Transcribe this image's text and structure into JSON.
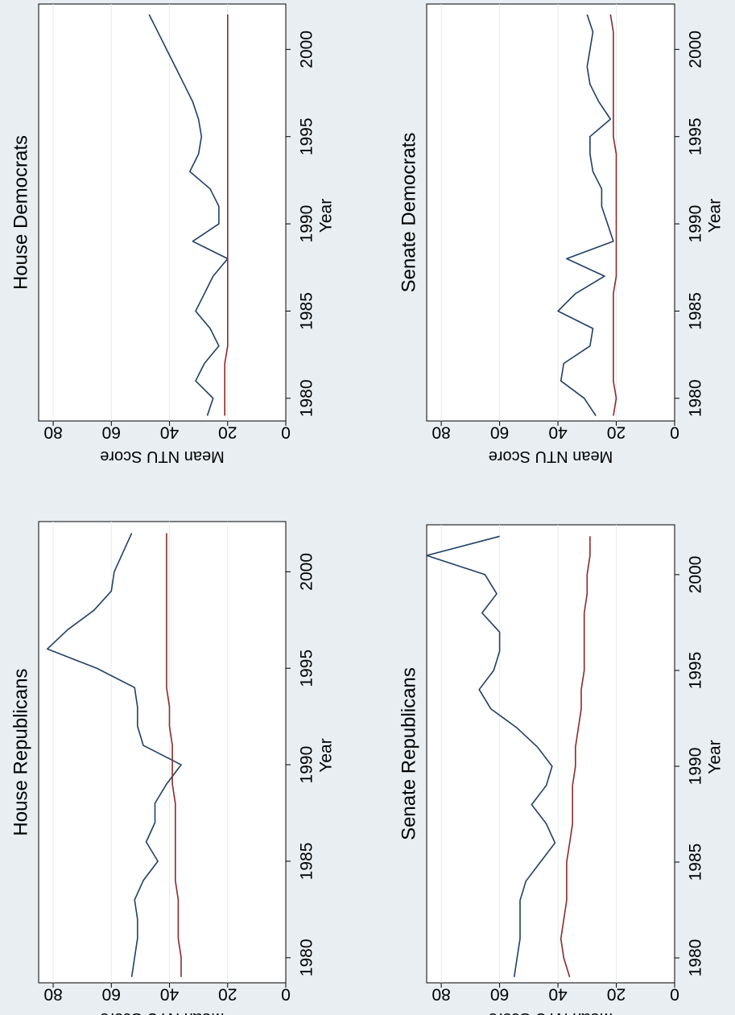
{
  "chart_data": [
    {
      "type": "line",
      "title": "House Republicans",
      "xlabel": "Year",
      "ylabel": "Mean NTU Score",
      "xlim": [
        1978.7,
        2002.6
      ],
      "ylim": [
        0,
        85
      ],
      "xticks": [
        1980,
        1985,
        1990,
        1995,
        2000
      ],
      "yticks": [
        0,
        20,
        40,
        60,
        80
      ],
      "grid": true,
      "series": [
        {
          "color": "#1f3f66",
          "x": [
            1979,
            1980,
            1981,
            1982,
            1983,
            1984,
            1985,
            1986,
            1987,
            1988,
            1989,
            1990,
            1991,
            1992,
            1993,
            1994,
            1995,
            1996,
            1997,
            1998,
            1999,
            2000,
            2001,
            2002
          ],
          "y": [
            53,
            52,
            51,
            51,
            52,
            49,
            44,
            48,
            45,
            45,
            41,
            36,
            49,
            51,
            51,
            52,
            65,
            82,
            75,
            66,
            60,
            59,
            56,
            53
          ]
        },
        {
          "color": "#8b2a2a",
          "x": [
            1979,
            1980,
            1981,
            1982,
            1983,
            1984,
            1985,
            1986,
            1987,
            1988,
            1989,
            1990,
            1991,
            1992,
            1993,
            1994,
            1995,
            1996,
            1997,
            1998,
            1999,
            2000,
            2001,
            2002
          ],
          "y": [
            36,
            36,
            37,
            37,
            37,
            38,
            38,
            38,
            38,
            38,
            39,
            39,
            39,
            40,
            40,
            41,
            41,
            41,
            41,
            41,
            41,
            41,
            41,
            41
          ]
        }
      ]
    },
    {
      "type": "line",
      "title": "House Democrats",
      "xlabel": "Year",
      "ylabel": "Mean NTU Score",
      "xlim": [
        1978.7,
        2002.6
      ],
      "ylim": [
        0,
        85
      ],
      "xticks": [
        1980,
        1985,
        1990,
        1995,
        2000
      ],
      "yticks": [
        0,
        20,
        40,
        60,
        80
      ],
      "grid": true,
      "series": [
        {
          "color": "#1f3f66",
          "x": [
            1979,
            1980,
            1981,
            1982,
            1983,
            1984,
            1985,
            1986,
            1987,
            1988,
            1989,
            1990,
            1991,
            1992,
            1993,
            1994,
            1995,
            1996,
            1997,
            1998,
            1999,
            2000,
            2001,
            2002
          ],
          "y": [
            27,
            25,
            31,
            28,
            23,
            26,
            31,
            28,
            25,
            20,
            32,
            23,
            23,
            26,
            33,
            30,
            29,
            30,
            32,
            35,
            38,
            41,
            44,
            47
          ]
        },
        {
          "color": "#8b2a2a",
          "x": [
            1979,
            1980,
            1981,
            1982,
            1983,
            1984,
            1985,
            1986,
            1987,
            1988,
            1989,
            1990,
            1991,
            1992,
            1993,
            1994,
            1995,
            1996,
            1997,
            1998,
            1999,
            2000,
            2001,
            2002
          ],
          "y": [
            21,
            21,
            21,
            21,
            20,
            20,
            20,
            20,
            20,
            20,
            20,
            20,
            20,
            20,
            20,
            20,
            20,
            20,
            20,
            20,
            20,
            20,
            20,
            20
          ]
        }
      ]
    },
    {
      "type": "line",
      "title": "Senate Republicans",
      "xlabel": "Year",
      "ylabel": "Mean NTU Score",
      "xlim": [
        1978.7,
        2002.6
      ],
      "ylim": [
        0,
        85
      ],
      "xticks": [
        1980,
        1985,
        1990,
        1995,
        2000
      ],
      "yticks": [
        0,
        20,
        40,
        60,
        80
      ],
      "grid": true,
      "series": [
        {
          "color": "#1f3f66",
          "x": [
            1979,
            1980,
            1981,
            1982,
            1983,
            1984,
            1985,
            1986,
            1987,
            1988,
            1989,
            1990,
            1991,
            1992,
            1993,
            1994,
            1995,
            1996,
            1997,
            1998,
            1999,
            2000,
            2001,
            2002
          ],
          "y": [
            55,
            54,
            53,
            53,
            53,
            51,
            46,
            41,
            44,
            49,
            44,
            42,
            47,
            54,
            63,
            67,
            62,
            60,
            60,
            66,
            61,
            65,
            85,
            60
          ]
        },
        {
          "color": "#8b2a2a",
          "x": [
            1979,
            1980,
            1981,
            1982,
            1983,
            1984,
            1985,
            1986,
            1987,
            1988,
            1989,
            1990,
            1991,
            1992,
            1993,
            1994,
            1995,
            1996,
            1997,
            1998,
            1999,
            2000,
            2001,
            2002
          ],
          "y": [
            36,
            38,
            39,
            38,
            37,
            37,
            37,
            36,
            35,
            35,
            35,
            34,
            34,
            33,
            32,
            32,
            31,
            31,
            31,
            31,
            30,
            30,
            29,
            29
          ]
        }
      ]
    },
    {
      "type": "line",
      "title": "Senate Democrats",
      "xlabel": "Year",
      "ylabel": "Mean NTU Score",
      "xlim": [
        1978.7,
        2002.6
      ],
      "ylim": [
        0,
        85
      ],
      "xticks": [
        1980,
        1985,
        1990,
        1995,
        2000
      ],
      "yticks": [
        0,
        20,
        40,
        60,
        80
      ],
      "grid": true,
      "series": [
        {
          "color": "#1f3f66",
          "x": [
            1979,
            1980,
            1981,
            1982,
            1983,
            1984,
            1985,
            1986,
            1987,
            1988,
            1989,
            1990,
            1991,
            1992,
            1993,
            1994,
            1995,
            1996,
            1997,
            1998,
            1999,
            2000,
            2001,
            2002
          ],
          "y": [
            27,
            31,
            39,
            38,
            29,
            28,
            40,
            34,
            24,
            37,
            21,
            23,
            25,
            25,
            28,
            29,
            29,
            22,
            26,
            29,
            30,
            29,
            28,
            30
          ]
        },
        {
          "color": "#8b2a2a",
          "x": [
            1979,
            1980,
            1981,
            1982,
            1983,
            1984,
            1985,
            1986,
            1987,
            1988,
            1989,
            1990,
            1991,
            1992,
            1993,
            1994,
            1995,
            1996,
            1997,
            1998,
            1999,
            2000,
            2001,
            2002
          ],
          "y": [
            21,
            20,
            21,
            21,
            21,
            21,
            21,
            21,
            20,
            20,
            20,
            20,
            20,
            20,
            20,
            20,
            21,
            21,
            21,
            21,
            21,
            21,
            21,
            22
          ]
        }
      ]
    }
  ]
}
